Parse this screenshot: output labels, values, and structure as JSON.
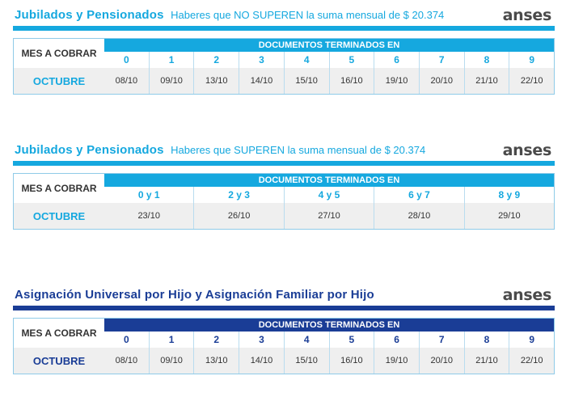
{
  "brand_text": "anses",
  "colors": {
    "cyan": "#15a8df",
    "navy": "#1a3d96",
    "row_gray": "#efefef",
    "border": "#8fcbe8"
  },
  "sections": [
    {
      "title": "Jubilados y Pensionados",
      "subtitle": "Haberes que NO SUPEREN la suma mensual de $ 20.374",
      "mes_label": "MES A COBRAR",
      "month": "OCTUBRE",
      "doc_header": "DOCUMENTOS TERMINADOS EN",
      "digits": [
        "0",
        "1",
        "2",
        "3",
        "4",
        "5",
        "6",
        "7",
        "8",
        "9"
      ],
      "dates": [
        "08/10",
        "09/10",
        "13/10",
        "14/10",
        "15/10",
        "16/10",
        "19/10",
        "20/10",
        "21/10",
        "22/10"
      ]
    },
    {
      "title": "Jubilados y Pensionados",
      "subtitle": "Haberes que SUPEREN la suma mensual de $ 20.374",
      "mes_label": "MES A COBRAR",
      "month": "OCTUBRE",
      "doc_header": "DOCUMENTOS TERMINADOS EN",
      "digits": [
        "0 y 1",
        "2 y 3",
        "4 y 5",
        "6 y 7",
        "8 y 9"
      ],
      "dates": [
        "23/10",
        "26/10",
        "27/10",
        "28/10",
        "29/10"
      ]
    },
    {
      "title": "Asignación Universal por Hijo y Asignación Familiar por Hijo",
      "subtitle": "",
      "mes_label": "MES A COBRAR",
      "month": "OCTUBRE",
      "doc_header": "DOCUMENTOS TERMINADOS EN",
      "digits": [
        "0",
        "1",
        "2",
        "3",
        "4",
        "5",
        "6",
        "7",
        "8",
        "9"
      ],
      "dates": [
        "08/10",
        "09/10",
        "13/10",
        "14/10",
        "15/10",
        "16/10",
        "19/10",
        "20/10",
        "21/10",
        "22/10"
      ]
    }
  ]
}
